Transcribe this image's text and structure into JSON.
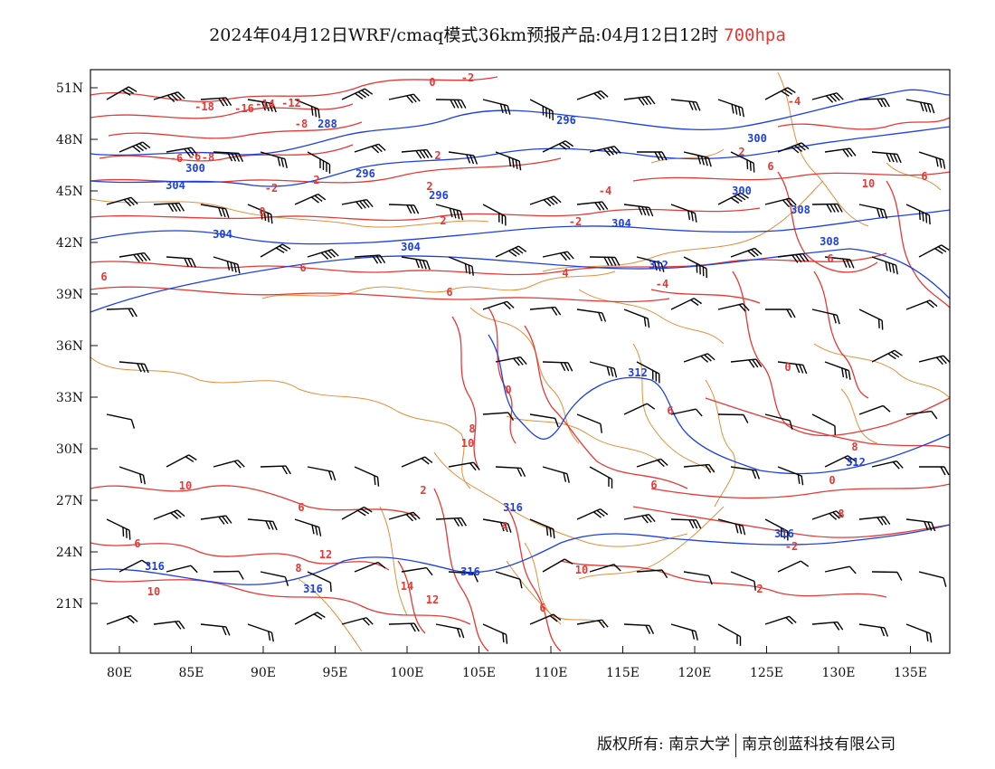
{
  "title": {
    "main": "2024年04月12日WRF/cmaq模式36km预报产品:04月12日12时",
    "level": "700hpa"
  },
  "colors": {
    "temperature": "#e53935",
    "height": "#1e40e0",
    "border": "#e0903a",
    "wind": "#000000"
  },
  "axes": {
    "x_ticks": [
      "80E",
      "85E",
      "90E",
      "95E",
      "100E",
      "105E",
      "110E",
      "115E",
      "120E",
      "125E",
      "130E",
      "135E"
    ],
    "y_ticks": [
      "51N",
      "48N",
      "45N",
      "42N",
      "39N",
      "36N",
      "33N",
      "30N",
      "27N",
      "24N",
      "21N"
    ]
  },
  "labels": {
    "temperature": [
      "0",
      "-2",
      "-18",
      "-16",
      "-14",
      "-12",
      "-8",
      "-6",
      "-8",
      "-6",
      "-2",
      "2",
      "0",
      "2",
      "2",
      "2",
      "-2",
      "2",
      "6",
      "6",
      "6",
      "4",
      "-4",
      "-4",
      "6",
      "6",
      "10",
      "12",
      "10",
      "14",
      "12",
      "10",
      "6",
      "8",
      "6",
      "8",
      "10",
      "6",
      "8",
      "6",
      "-4",
      "0",
      "2",
      "-2",
      "0",
      "0",
      "2",
      "4",
      "6",
      "8",
      "10",
      "6"
    ],
    "height": [
      "288",
      "296",
      "296",
      "300",
      "304",
      "300",
      "296",
      "300",
      "304",
      "304",
      "304",
      "308",
      "308",
      "312",
      "312",
      "312",
      "316",
      "316",
      "316",
      "316",
      "316"
    ]
  },
  "footer": {
    "left": "版权所有: 南京大学",
    "right": "南京创蓝科技有限公司"
  }
}
